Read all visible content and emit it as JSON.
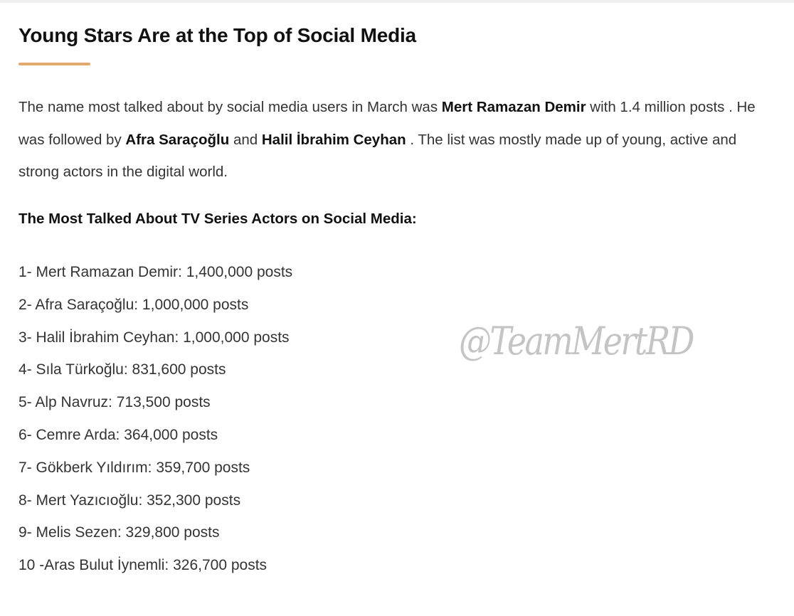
{
  "article": {
    "title": "Young Stars Are at the Top of Social Media",
    "accent_color": "#e2a970",
    "paragraph": {
      "t1": "The name most talked about by social media users in March was ",
      "b1": "Mert Ramazan Demir",
      "t2": " with 1.4 million posts . He was followed by ",
      "b2": "Afra Saraçoğlu",
      "t3": " and ",
      "b3": "Halil İbrahim Ceyhan",
      "t4": " . The list was mostly made up of young, active and strong actors in the digital world."
    },
    "list_heading": "The Most Talked About TV Series Actors on Social Media:",
    "list": [
      "1- Mert Ramazan Demir: 1,400,000 posts",
      "2- Afra Saraçoğlu: 1,000,000 posts",
      "3- Halil İbrahim Ceyhan: 1,000,000 posts",
      "4- Sıla Türkoğlu: 831,600 posts",
      "5- Alp Navruz: 713,500 posts",
      "6- Cemre Arda: 364,000 posts",
      "7- Gökberk Yıldırım: 359,700 posts",
      "8- Mert Yazıcıoğlu: 352,300 posts",
      "9- Melis Sezen: 329,800 posts",
      "10 -Aras Bulut İynemli: 326,700 posts"
    ]
  },
  "watermark": "@TeamMertRD"
}
